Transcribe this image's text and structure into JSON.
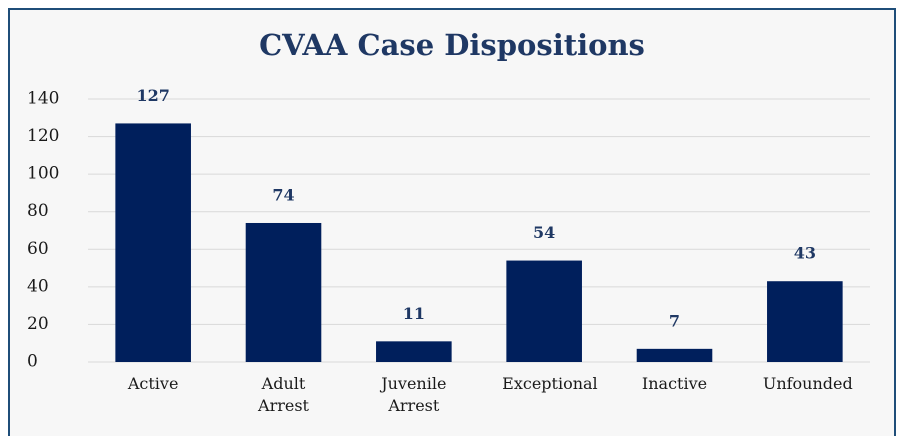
{
  "chart_data": {
    "type": "bar",
    "title": "CVAA Case Dispositions",
    "categories": [
      "Active",
      "Adult Arrest",
      "Juvenile Arrest",
      "Exceptional",
      "Inactive",
      "Unfounded"
    ],
    "values": [
      127,
      74,
      11,
      54,
      7,
      43
    ],
    "color": "#001f5c",
    "ylim": [
      0,
      140
    ],
    "yticks": [
      0,
      20,
      40,
      60,
      80,
      100,
      120,
      140
    ],
    "grid": true
  }
}
